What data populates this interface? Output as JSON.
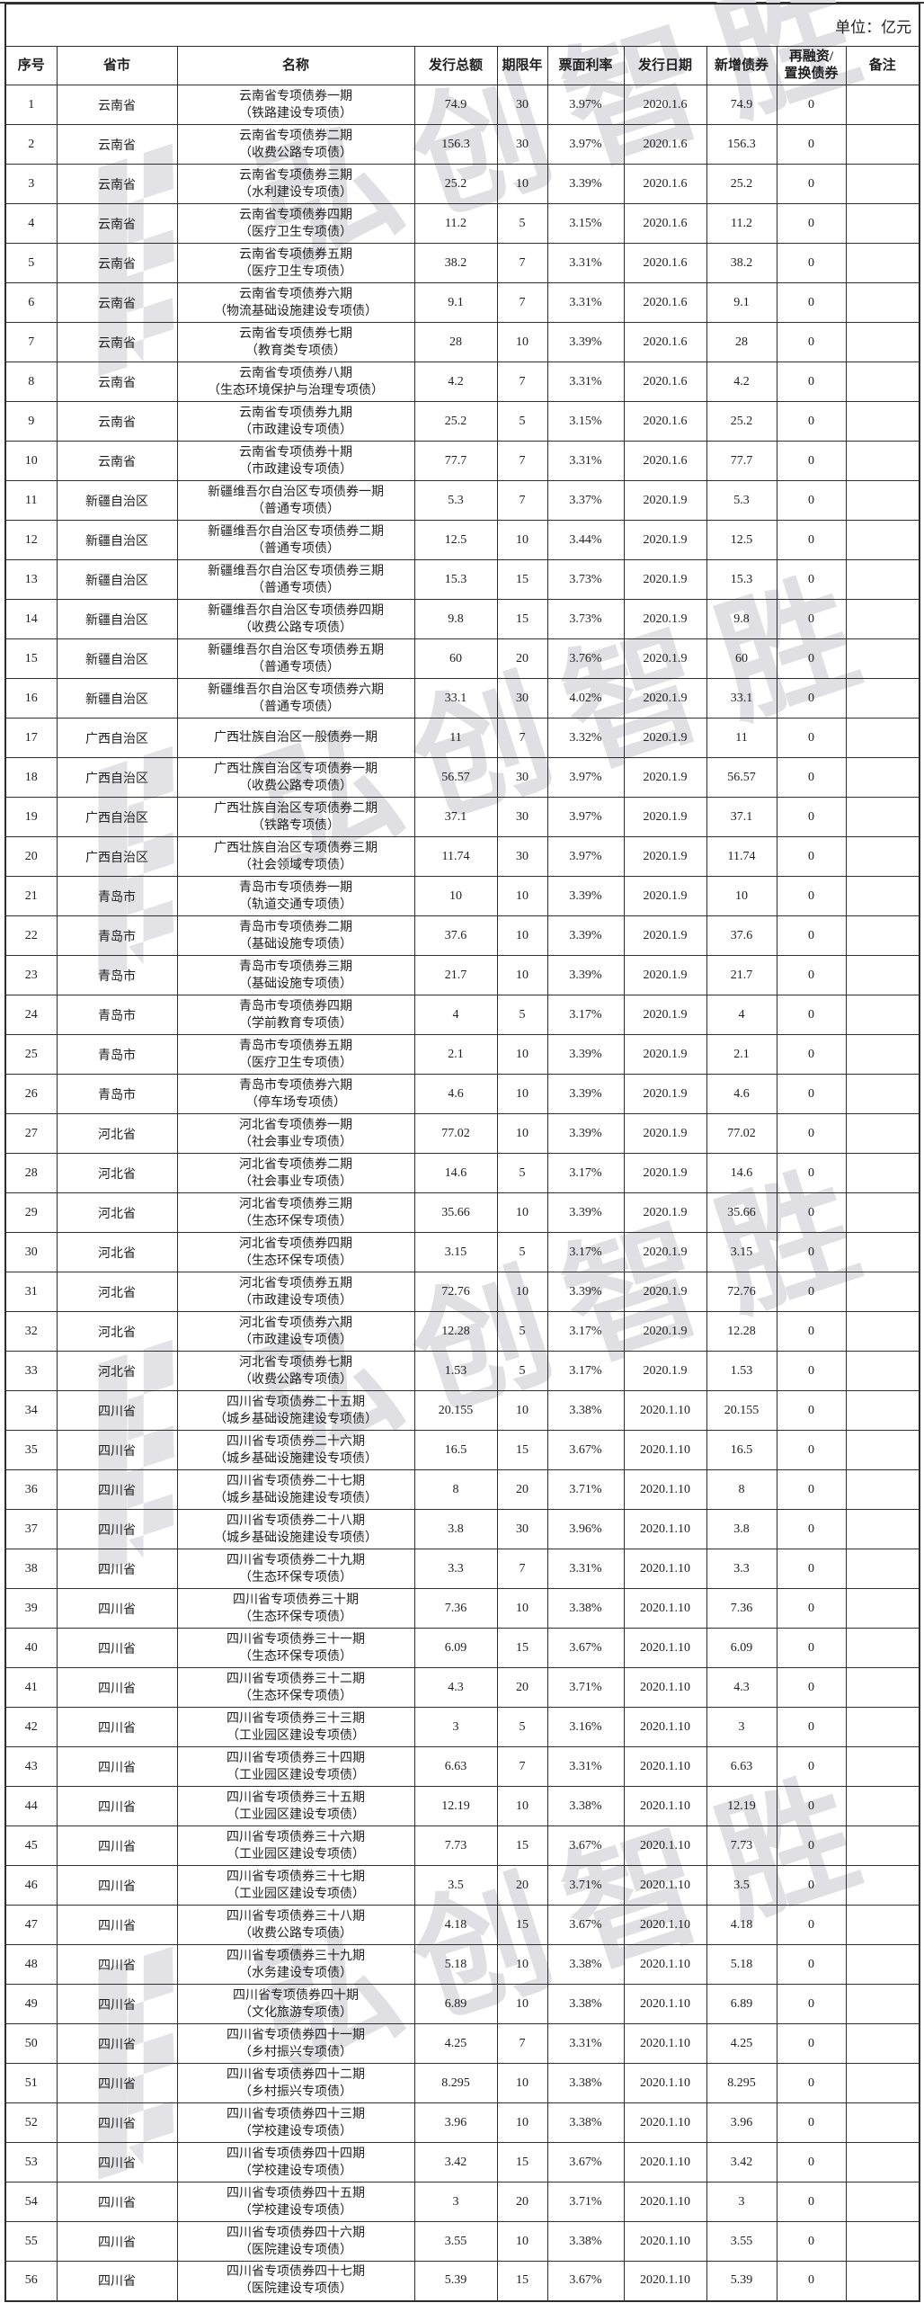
{
  "unit_label": "单位：亿元",
  "watermark": {
    "text": "弘创智胜",
    "color": "#dfdfe4"
  },
  "table": {
    "columns": [
      "序号",
      "省市",
      "名称",
      "发行总额",
      "期限年",
      "票面利率",
      "发行日期",
      "新增债券",
      "再融资/\n置换债券",
      "备注"
    ],
    "row_fields": [
      "no",
      "province",
      "name_line1",
      "name_line2",
      "amount",
      "term_years",
      "coupon_rate",
      "issue_date",
      "new_bond",
      "refinance",
      "note"
    ],
    "rows": [
      [
        "1",
        "云南省",
        "云南省专项债券一期",
        "（铁路建设专项债）",
        "74.9",
        "30",
        "3.97%",
        "2020.1.6",
        "74.9",
        "0",
        ""
      ],
      [
        "2",
        "云南省",
        "云南省专项债券二期",
        "（收费公路专项债）",
        "156.3",
        "30",
        "3.97%",
        "2020.1.6",
        "156.3",
        "0",
        ""
      ],
      [
        "3",
        "云南省",
        "云南省专项债券三期",
        "（水利建设专项债）",
        "25.2",
        "10",
        "3.39%",
        "2020.1.6",
        "25.2",
        "0",
        ""
      ],
      [
        "4",
        "云南省",
        "云南省专项债券四期",
        "（医疗卫生专项债）",
        "11.2",
        "5",
        "3.15%",
        "2020.1.6",
        "11.2",
        "0",
        ""
      ],
      [
        "5",
        "云南省",
        "云南省专项债券五期",
        "（医疗卫生专项债）",
        "38.2",
        "7",
        "3.31%",
        "2020.1.6",
        "38.2",
        "0",
        ""
      ],
      [
        "6",
        "云南省",
        "云南省专项债券六期",
        "（物流基础设施建设专项债）",
        "9.1",
        "7",
        "3.31%",
        "2020.1.6",
        "9.1",
        "0",
        ""
      ],
      [
        "7",
        "云南省",
        "云南省专项债券七期",
        "（教育类专项债）",
        "28",
        "10",
        "3.39%",
        "2020.1.6",
        "28",
        "0",
        ""
      ],
      [
        "8",
        "云南省",
        "云南省专项债券八期",
        "（生态环境保护与治理专项债）",
        "4.2",
        "7",
        "3.31%",
        "2020.1.6",
        "4.2",
        "0",
        ""
      ],
      [
        "9",
        "云南省",
        "云南省专项债券九期",
        "（市政建设专项债）",
        "25.2",
        "5",
        "3.15%",
        "2020.1.6",
        "25.2",
        "0",
        ""
      ],
      [
        "10",
        "云南省",
        "云南省专项债券十期",
        "（市政建设专项债）",
        "77.7",
        "7",
        "3.31%",
        "2020.1.6",
        "77.7",
        "0",
        ""
      ],
      [
        "11",
        "新疆自治区",
        "新疆维吾尔自治区专项债券一期",
        "（普通专项债）",
        "5.3",
        "7",
        "3.37%",
        "2020.1.9",
        "5.3",
        "0",
        ""
      ],
      [
        "12",
        "新疆自治区",
        "新疆维吾尔自治区专项债券二期",
        "（普通专项债）",
        "12.5",
        "10",
        "3.44%",
        "2020.1.9",
        "12.5",
        "0",
        ""
      ],
      [
        "13",
        "新疆自治区",
        "新疆维吾尔自治区专项债券三期",
        "（普通专项债）",
        "15.3",
        "15",
        "3.73%",
        "2020.1.9",
        "15.3",
        "0",
        ""
      ],
      [
        "14",
        "新疆自治区",
        "新疆维吾尔自治区专项债券四期",
        "（收费公路专项债）",
        "9.8",
        "15",
        "3.73%",
        "2020.1.9",
        "9.8",
        "0",
        ""
      ],
      [
        "15",
        "新疆自治区",
        "新疆维吾尔自治区专项债券五期",
        "（普通专项债）",
        "60",
        "20",
        "3.76%",
        "2020.1.9",
        "60",
        "0",
        ""
      ],
      [
        "16",
        "新疆自治区",
        "新疆维吾尔自治区专项债券六期",
        "（普通专项债）",
        "33.1",
        "30",
        "4.02%",
        "2020.1.9",
        "33.1",
        "0",
        ""
      ],
      [
        "17",
        "广西自治区",
        "广西壮族自治区一般债券一期",
        "",
        "11",
        "7",
        "3.32%",
        "2020.1.9",
        "11",
        "0",
        ""
      ],
      [
        "18",
        "广西自治区",
        "广西壮族自治区专项债券一期",
        "（收费公路专项债）",
        "56.57",
        "30",
        "3.97%",
        "2020.1.9",
        "56.57",
        "0",
        ""
      ],
      [
        "19",
        "广西自治区",
        "广西壮族自治区专项债券二期",
        "（铁路专项债）",
        "37.1",
        "30",
        "3.97%",
        "2020.1.9",
        "37.1",
        "0",
        ""
      ],
      [
        "20",
        "广西自治区",
        "广西壮族自治区专项债券三期",
        "（社会领域专项债）",
        "11.74",
        "30",
        "3.97%",
        "2020.1.9",
        "11.74",
        "0",
        ""
      ],
      [
        "21",
        "青岛市",
        "青岛市专项债券一期",
        "（轨道交通专项债）",
        "10",
        "10",
        "3.39%",
        "2020.1.9",
        "10",
        "0",
        ""
      ],
      [
        "22",
        "青岛市",
        "青岛市专项债券二期",
        "（基础设施专项债）",
        "37.6",
        "10",
        "3.39%",
        "2020.1.9",
        "37.6",
        "0",
        ""
      ],
      [
        "23",
        "青岛市",
        "青岛市专项债券三期",
        "（基础设施专项债）",
        "21.7",
        "10",
        "3.39%",
        "2020.1.9",
        "21.7",
        "0",
        ""
      ],
      [
        "24",
        "青岛市",
        "青岛市专项债券四期",
        "（学前教育专项债）",
        "4",
        "5",
        "3.17%",
        "2020.1.9",
        "4",
        "0",
        ""
      ],
      [
        "25",
        "青岛市",
        "青岛市专项债券五期",
        "（医疗卫生专项债）",
        "2.1",
        "10",
        "3.39%",
        "2020.1.9",
        "2.1",
        "0",
        ""
      ],
      [
        "26",
        "青岛市",
        "青岛市专项债券六期",
        "（停车场专项债）",
        "4.6",
        "10",
        "3.39%",
        "2020.1.9",
        "4.6",
        "0",
        ""
      ],
      [
        "27",
        "河北省",
        "河北省专项债券一期",
        "（社会事业专项债）",
        "77.02",
        "10",
        "3.39%",
        "2020.1.9",
        "77.02",
        "0",
        ""
      ],
      [
        "28",
        "河北省",
        "河北省专项债券二期",
        "（社会事业专项债）",
        "14.6",
        "5",
        "3.17%",
        "2020.1.9",
        "14.6",
        "0",
        ""
      ],
      [
        "29",
        "河北省",
        "河北省专项债券三期",
        "（生态环保专项债）",
        "35.66",
        "10",
        "3.39%",
        "2020.1.9",
        "35.66",
        "0",
        ""
      ],
      [
        "30",
        "河北省",
        "河北省专项债券四期",
        "（生态环保专项债）",
        "3.15",
        "5",
        "3.17%",
        "2020.1.9",
        "3.15",
        "0",
        ""
      ],
      [
        "31",
        "河北省",
        "河北省专项债券五期",
        "（市政建设专项债）",
        "72.76",
        "10",
        "3.39%",
        "2020.1.9",
        "72.76",
        "0",
        ""
      ],
      [
        "32",
        "河北省",
        "河北省专项债券六期",
        "（市政建设专项债）",
        "12.28",
        "5",
        "3.17%",
        "2020.1.9",
        "12.28",
        "0",
        ""
      ],
      [
        "33",
        "河北省",
        "河北省专项债券七期",
        "（收费公路专项债）",
        "1.53",
        "5",
        "3.17%",
        "2020.1.9",
        "1.53",
        "0",
        ""
      ],
      [
        "34",
        "四川省",
        "四川省专项债券二十五期",
        "（城乡基础设施建设专项债）",
        "20.155",
        "10",
        "3.38%",
        "2020.1.10",
        "20.155",
        "0",
        ""
      ],
      [
        "35",
        "四川省",
        "四川省专项债券二十六期",
        "（城乡基础设施建设专项债）",
        "16.5",
        "15",
        "3.67%",
        "2020.1.10",
        "16.5",
        "0",
        ""
      ],
      [
        "36",
        "四川省",
        "四川省专项债券二十七期",
        "（城乡基础设施建设专项债）",
        "8",
        "20",
        "3.71%",
        "2020.1.10",
        "8",
        "0",
        ""
      ],
      [
        "37",
        "四川省",
        "四川省专项债券二十八期",
        "（城乡基础设施建设专项债）",
        "3.8",
        "30",
        "3.96%",
        "2020.1.10",
        "3.8",
        "0",
        ""
      ],
      [
        "38",
        "四川省",
        "四川省专项债券二十九期",
        "（生态环保专项债）",
        "3.3",
        "7",
        "3.31%",
        "2020.1.10",
        "3.3",
        "0",
        ""
      ],
      [
        "39",
        "四川省",
        "四川省专项债券三十期",
        "（生态环保专项债）",
        "7.36",
        "10",
        "3.38%",
        "2020.1.10",
        "7.36",
        "0",
        ""
      ],
      [
        "40",
        "四川省",
        "四川省专项债券三十一期",
        "（生态环保专项债）",
        "6.09",
        "15",
        "3.67%",
        "2020.1.10",
        "6.09",
        "0",
        ""
      ],
      [
        "41",
        "四川省",
        "四川省专项债券三十二期",
        "（生态环保专项债）",
        "4.3",
        "20",
        "3.71%",
        "2020.1.10",
        "4.3",
        "0",
        ""
      ],
      [
        "42",
        "四川省",
        "四川省专项债券三十三期",
        "（工业园区建设专项债）",
        "3",
        "5",
        "3.16%",
        "2020.1.10",
        "3",
        "0",
        ""
      ],
      [
        "43",
        "四川省",
        "四川省专项债券三十四期",
        "（工业园区建设专项债）",
        "6.63",
        "7",
        "3.31%",
        "2020.1.10",
        "6.63",
        "0",
        ""
      ],
      [
        "44",
        "四川省",
        "四川省专项债券三十五期",
        "（工业园区建设专项债）",
        "12.19",
        "10",
        "3.38%",
        "2020.1.10",
        "12.19",
        "0",
        ""
      ],
      [
        "45",
        "四川省",
        "四川省专项债券三十六期",
        "（工业园区建设专项债）",
        "7.73",
        "15",
        "3.67%",
        "2020.1.10",
        "7.73",
        "0",
        ""
      ],
      [
        "46",
        "四川省",
        "四川省专项债券三十七期",
        "（工业园区建设专项债）",
        "3.5",
        "20",
        "3.71%",
        "2020.1.10",
        "3.5",
        "0",
        ""
      ],
      [
        "47",
        "四川省",
        "四川省专项债券三十八期",
        "（收费公路专项债）",
        "4.18",
        "15",
        "3.67%",
        "2020.1.10",
        "4.18",
        "0",
        ""
      ],
      [
        "48",
        "四川省",
        "四川省专项债券三十九期",
        "（水务建设专项债）",
        "5.18",
        "10",
        "3.38%",
        "2020.1.10",
        "5.18",
        "0",
        ""
      ],
      [
        "49",
        "四川省",
        "四川省专项债券四十期",
        "（文化旅游专项债）",
        "6.89",
        "10",
        "3.38%",
        "2020.1.10",
        "6.89",
        "0",
        ""
      ],
      [
        "50",
        "四川省",
        "四川省专项债券四十一期",
        "（乡村振兴专项债）",
        "4.25",
        "7",
        "3.31%",
        "2020.1.10",
        "4.25",
        "0",
        ""
      ],
      [
        "51",
        "四川省",
        "四川省专项债券四十二期",
        "（乡村振兴专项债）",
        "8.295",
        "10",
        "3.38%",
        "2020.1.10",
        "8.295",
        "0",
        ""
      ],
      [
        "52",
        "四川省",
        "四川省专项债券四十三期",
        "（学校建设专项债）",
        "3.96",
        "10",
        "3.38%",
        "2020.1.10",
        "3.96",
        "0",
        ""
      ],
      [
        "53",
        "四川省",
        "四川省专项债券四十四期",
        "（学校建设专项债）",
        "3.42",
        "15",
        "3.67%",
        "2020.1.10",
        "3.42",
        "0",
        ""
      ],
      [
        "54",
        "四川省",
        "四川省专项债券四十五期",
        "（学校建设专项债）",
        "3",
        "20",
        "3.71%",
        "2020.1.10",
        "3",
        "0",
        ""
      ],
      [
        "55",
        "四川省",
        "四川省专项债券四十六期",
        "（医院建设专项债）",
        "3.55",
        "10",
        "3.38%",
        "2020.1.10",
        "3.55",
        "0",
        ""
      ],
      [
        "56",
        "四川省",
        "四川省专项债券四十七期",
        "（医院建设专项债）",
        "5.39",
        "15",
        "3.67%",
        "2020.1.10",
        "5.39",
        "0",
        ""
      ]
    ]
  }
}
